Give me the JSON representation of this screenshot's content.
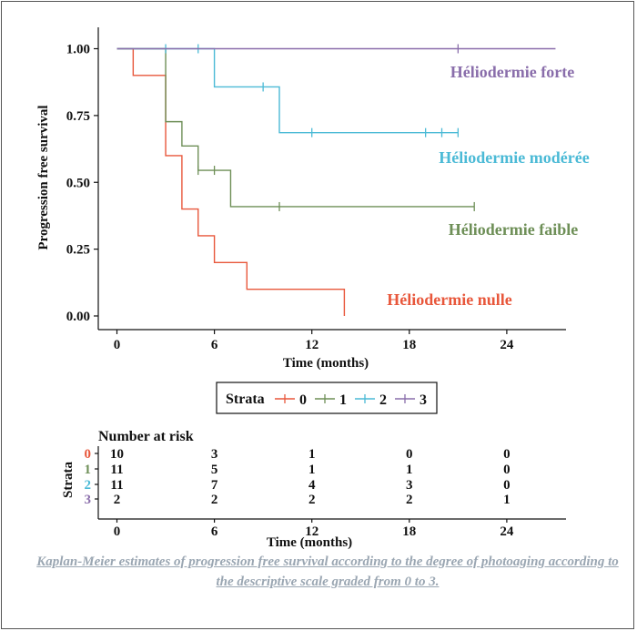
{
  "chart_data": {
    "type": "line",
    "subtype": "kaplan-meier",
    "ylabel": "Progression free survival",
    "xlabel": "Time (months)",
    "xlim": [
      0,
      27
    ],
    "ylim": [
      0,
      1
    ],
    "x_ticks": [
      "0",
      "6",
      "12",
      "18",
      "24"
    ],
    "y_ticks": [
      "0.00",
      "0.25",
      "0.50",
      "0.75",
      "1.00"
    ],
    "legend": {
      "title": "Strata",
      "position": "bottom",
      "entries": [
        "0",
        "1",
        "2",
        "3"
      ]
    },
    "series": [
      {
        "name": "0",
        "label": "Héliodermie nulle",
        "color": "#e8573b",
        "steps": [
          [
            0,
            1.0
          ],
          [
            1,
            0.9
          ],
          [
            3,
            0.6
          ],
          [
            4,
            0.4
          ],
          [
            5,
            0.3
          ],
          [
            6,
            0.2
          ],
          [
            8,
            0.1
          ],
          [
            14,
            0.0
          ]
        ],
        "end": 14,
        "censor": []
      },
      {
        "name": "1",
        "label": "Héliodermie faible",
        "color": "#6e8f57",
        "steps": [
          [
            0,
            1.0
          ],
          [
            3,
            0.727
          ],
          [
            4,
            0.636
          ],
          [
            5,
            0.545
          ],
          [
            7,
            0.409
          ]
        ],
        "end": 22,
        "censor": [
          [
            5,
            0.545
          ],
          [
            6,
            0.545
          ],
          [
            10,
            0.409
          ],
          [
            22,
            0.409
          ]
        ]
      },
      {
        "name": "2",
        "label": "Héliodermie modérée",
        "color": "#4bbad6",
        "steps": [
          [
            0,
            1.0
          ],
          [
            6,
            0.857
          ],
          [
            10,
            0.686
          ]
        ],
        "end": 21,
        "censor": [
          [
            3,
            1.0
          ],
          [
            5,
            1.0
          ],
          [
            9,
            0.857
          ],
          [
            12,
            0.686
          ],
          [
            19,
            0.686
          ],
          [
            20,
            0.686
          ],
          [
            21,
            0.686
          ]
        ]
      },
      {
        "name": "3",
        "label": "Héliodermie forte",
        "color": "#8a6eab",
        "steps": [
          [
            0,
            1.0
          ]
        ],
        "end": 27,
        "censor": [
          [
            21,
            1.0
          ]
        ]
      }
    ],
    "risk_table": {
      "title": "Number at risk",
      "ylabel": "Strata",
      "xlabel": "Time (months)",
      "times": [
        "0",
        "6",
        "12",
        "18",
        "24"
      ],
      "rows": [
        {
          "stratum": "0",
          "counts": [
            "10",
            "3",
            "1",
            "0",
            "0"
          ]
        },
        {
          "stratum": "1",
          "counts": [
            "11",
            "5",
            "1",
            "1",
            "0"
          ]
        },
        {
          "stratum": "2",
          "counts": [
            "11",
            "7",
            "4",
            "3",
            "0"
          ]
        },
        {
          "stratum": "3",
          "counts": [
            "2",
            "2",
            "2",
            "2",
            "1"
          ]
        }
      ]
    }
  },
  "caption": "Kaplan-Meier estimates of progression free survival according to the degree of photoaging according to the descriptive scale graded from 0 to 3."
}
